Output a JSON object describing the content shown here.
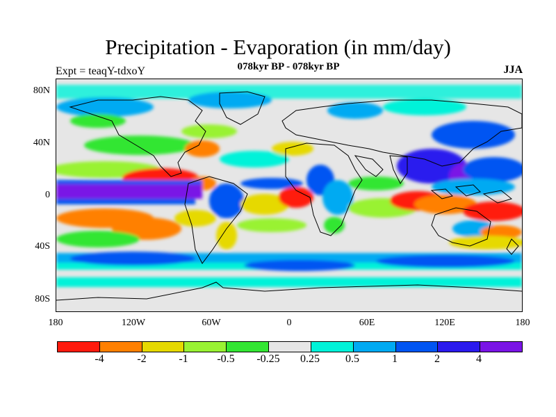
{
  "title": "Precipitation - Evaporation (in mm/day)",
  "subtitle": "078kyr BP - 078kyr BP",
  "experiment": "Expt = teaqY-tdxoY",
  "season": "JJA",
  "lat_labels": [
    "80N",
    "40N",
    "0",
    "40S",
    "80S"
  ],
  "lon_labels": [
    "180",
    "120W",
    "60W",
    "0",
    "60E",
    "120E",
    "180"
  ],
  "colorbar": {
    "colors": [
      "#ff1a0d",
      "#ff8000",
      "#e6d900",
      "#99f233",
      "#33e633",
      "#e6e6e6",
      "#00f2d9",
      "#00aaf2",
      "#0055f2",
      "#2a1aee",
      "#7a14e6"
    ],
    "labels": [
      "-4",
      "-2",
      "-1",
      "-0.5",
      "-0.25",
      "0.25",
      "0.5",
      "1",
      "2",
      "4"
    ]
  },
  "palette": {
    "background": "#e6e6e6",
    "coastline": "#000000"
  }
}
